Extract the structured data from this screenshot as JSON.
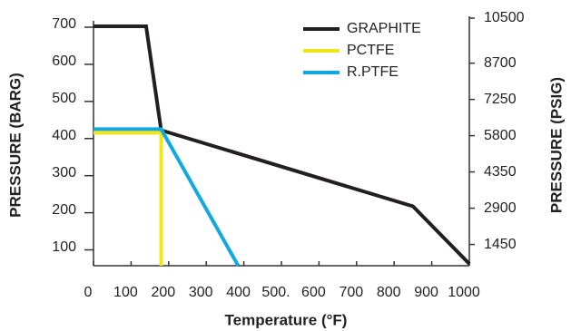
{
  "chart_data": {
    "type": "line",
    "x_label": "Temperature (°F)",
    "y_label": "PRESSURE (BARG)",
    "y2_label": "PRESSURE (PSIG)",
    "xlim": [
      0,
      1000
    ],
    "xticks": [
      0,
      100,
      200,
      300,
      400,
      {
        "value": 500,
        "label": "500."
      },
      600,
      700,
      800,
      900,
      1000
    ],
    "ylim": [
      50,
      700
    ],
    "yticks": [
      100,
      200,
      300,
      400,
      500,
      600,
      700
    ],
    "y2lim": [
      600,
      10500
    ],
    "y2ticks": [
      1450,
      2900,
      4350,
      5800,
      7250,
      8700,
      10500
    ],
    "legend": "upper right",
    "series": [
      {
        "name": "GRAPHITE",
        "color": "#231f20",
        "x": [
          0,
          140,
          180,
          850,
          1000
        ],
        "values": [
          695,
          695,
          415,
          210,
          55
        ]
      },
      {
        "name": "PCTFE",
        "color": "#f2e51a",
        "x": [
          0,
          180,
          180
        ],
        "values": [
          408,
          408,
          50
        ]
      },
      {
        "name": "R.PTFE",
        "color": "#12a9e0",
        "x": [
          0,
          180,
          385
        ],
        "values": [
          418,
          418,
          50
        ]
      }
    ]
  }
}
